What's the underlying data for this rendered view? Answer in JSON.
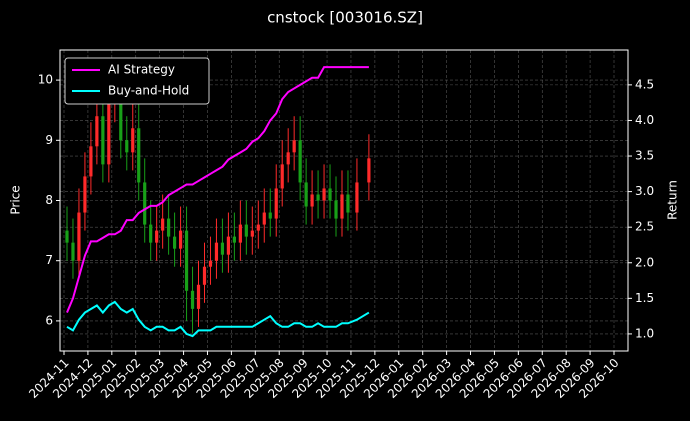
{
  "chart_data": {
    "type": "candlestick",
    "title": "cnstock [003016.SZ]",
    "y_label": "Price",
    "y2_label": "Return",
    "up_color": "#ff2a2a",
    "down_color": "#18a018",
    "grid": true,
    "legend": "upper left",
    "x": [
      "2024-11",
      "2024-11",
      "2024-11",
      "2024-11",
      "2024-12",
      "2024-12",
      "2024-12",
      "2024-12",
      "2025-01",
      "2025-01",
      "2025-01",
      "2025-01",
      "2025-02",
      "2025-02",
      "2025-02",
      "2025-02",
      "2025-03",
      "2025-03",
      "2025-03",
      "2025-03",
      "2025-04",
      "2025-04",
      "2025-04",
      "2025-04",
      "2025-05",
      "2025-05",
      "2025-05",
      "2025-05",
      "2025-06",
      "2025-06",
      "2025-06",
      "2025-06",
      "2025-07",
      "2025-07",
      "2025-07",
      "2025-07",
      "2025-08",
      "2025-08",
      "2025-08",
      "2025-08",
      "2025-09",
      "2025-09",
      "2025-09",
      "2025-09",
      "2025-10",
      "2025-10",
      "2025-10",
      "2025-10",
      "2025-11",
      "2025-11"
    ],
    "open": [
      7.5,
      7.3,
      7.0,
      7.8,
      8.4,
      8.9,
      9.4,
      8.6,
      9.6,
      9.8,
      9.0,
      8.8,
      9.2,
      8.3,
      7.6,
      7.3,
      7.5,
      7.7,
      7.4,
      7.2,
      7.5,
      6.5,
      6.2,
      6.6,
      6.9,
      7.0,
      7.3,
      7.1,
      7.4,
      7.3,
      7.6,
      7.4,
      7.5,
      7.6,
      7.8,
      7.7,
      8.2,
      8.6,
      8.8,
      9.0,
      8.3,
      7.9,
      8.1,
      8.0,
      8.2,
      8.0,
      7.7,
      8.1,
      7.8,
      8.3
    ],
    "high": [
      7.9,
      7.7,
      8.2,
      8.8,
      9.3,
      9.8,
      9.8,
      10.0,
      10.3,
      10.2,
      9.4,
      9.6,
      9.6,
      8.7,
      8.0,
      7.9,
      8.1,
      8.1,
      7.8,
      7.9,
      7.9,
      6.9,
      7.0,
      7.3,
      7.4,
      7.7,
      7.7,
      7.8,
      7.8,
      8.0,
      8.0,
      7.9,
      8.0,
      8.2,
      8.2,
      8.6,
      9.0,
      9.2,
      9.4,
      9.4,
      8.7,
      8.5,
      8.5,
      8.6,
      8.6,
      8.4,
      8.5,
      8.5,
      8.7,
      9.1
    ],
    "low": [
      7.0,
      6.7,
      6.7,
      7.5,
      8.1,
      8.6,
      8.3,
      8.3,
      9.3,
      8.7,
      8.5,
      8.5,
      8.0,
      7.3,
      7.0,
      7.0,
      7.2,
      7.1,
      6.9,
      6.9,
      6.0,
      5.8,
      5.9,
      6.3,
      6.6,
      6.7,
      6.8,
      6.8,
      7.0,
      7.0,
      7.1,
      7.1,
      7.2,
      7.3,
      7.4,
      7.4,
      7.9,
      8.3,
      8.5,
      8.0,
      7.6,
      7.6,
      7.7,
      7.7,
      7.7,
      7.4,
      7.4,
      7.5,
      7.5,
      8.0
    ],
    "close": [
      7.3,
      7.0,
      7.8,
      8.4,
      8.9,
      9.4,
      8.6,
      9.6,
      9.8,
      9.0,
      8.8,
      9.2,
      8.3,
      7.6,
      7.3,
      7.5,
      7.7,
      7.4,
      7.2,
      7.5,
      6.5,
      6.2,
      6.6,
      6.9,
      7.0,
      7.3,
      7.1,
      7.4,
      7.3,
      7.6,
      7.4,
      7.5,
      7.6,
      7.8,
      7.7,
      8.2,
      8.6,
      8.8,
      9.0,
      8.3,
      7.9,
      8.1,
      8.0,
      8.2,
      8.0,
      7.7,
      8.1,
      7.8,
      8.3,
      8.7
    ],
    "series": [
      {
        "name": "AI Strategy",
        "color": "#ff00ff",
        "axis": "y2",
        "values": [
          1.3,
          1.5,
          1.8,
          2.1,
          2.3,
          2.3,
          2.35,
          2.4,
          2.4,
          2.45,
          2.6,
          2.6,
          2.7,
          2.75,
          2.8,
          2.8,
          2.85,
          2.95,
          3.0,
          3.05,
          3.1,
          3.1,
          3.15,
          3.2,
          3.25,
          3.3,
          3.35,
          3.45,
          3.5,
          3.55,
          3.6,
          3.7,
          3.75,
          3.85,
          4.0,
          4.1,
          4.3,
          4.4,
          4.45,
          4.5,
          4.55,
          4.6,
          4.6,
          4.75,
          4.75,
          4.75,
          4.75,
          4.75,
          4.75,
          4.75
        ]
      },
      {
        "name": "Buy-and-Hold",
        "color": "#00ffff",
        "axis": "y2",
        "values": [
          1.1,
          1.05,
          1.2,
          1.3,
          1.35,
          1.4,
          1.3,
          1.4,
          1.45,
          1.35,
          1.3,
          1.35,
          1.2,
          1.1,
          1.05,
          1.1,
          1.1,
          1.05,
          1.05,
          1.1,
          1.0,
          0.97,
          1.05,
          1.05,
          1.05,
          1.1,
          1.1,
          1.1,
          1.1,
          1.1,
          1.1,
          1.1,
          1.15,
          1.2,
          1.25,
          1.15,
          1.1,
          1.1,
          1.15,
          1.15,
          1.1,
          1.1,
          1.15,
          1.1,
          1.1,
          1.1,
          1.15,
          1.15,
          1.2,
          1.3
        ]
      }
    ],
    "xlim": [
      "2024-11",
      "2026-10"
    ],
    "xticks": [
      "2024-11",
      "2024-12",
      "2025-01",
      "2025-02",
      "2025-03",
      "2025-04",
      "2025-05",
      "2025-06",
      "2025-07",
      "2025-08",
      "2025-09",
      "2025-10",
      "2025-11",
      "2025-12",
      "2026-01",
      "2026-02",
      "2026-03",
      "2026-04",
      "2026-05",
      "2026-06",
      "2026-07",
      "2026-08",
      "2026-09",
      "2026-10"
    ],
    "ylim": [
      5.5,
      10.5
    ],
    "yticks": [
      6,
      7,
      8,
      9,
      10
    ],
    "y2lim": [
      0.76,
      4.99
    ],
    "y2ticks": [
      {
        "value": 1,
        "label": "1.0"
      },
      1.5,
      {
        "value": 2,
        "label": "2.0"
      },
      2.5,
      {
        "value": 3,
        "label": "3.0"
      },
      3.5,
      {
        "value": 4,
        "label": "4.0"
      },
      4.5
    ]
  }
}
